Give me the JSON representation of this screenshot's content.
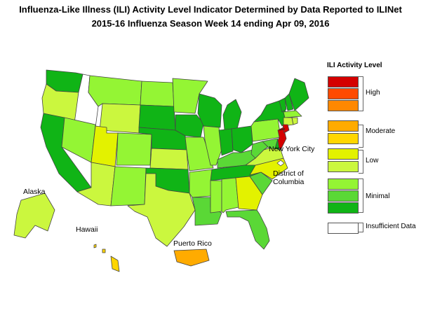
{
  "title": "Influenza-Like Illness (ILI) Activity Level Indicator Determined by Data Reported to ILINet",
  "subtitle": "2015-16  Influenza Season Week  14 ending Apr 09, 2016",
  "labels": {
    "alaska": "Alaska",
    "hawaii": "Hawaii",
    "puerto_rico": "Puerto Rico",
    "nyc": "New York City",
    "dc": "District of Columbia"
  },
  "legend": {
    "title": "ILI Activity Level",
    "levels": [
      {
        "level": 10,
        "color": "#d40000"
      },
      {
        "level": 9,
        "color": "#ff4a00"
      },
      {
        "level": 8,
        "color": "#ff8800"
      },
      {
        "level": 7,
        "color": "#ffab00"
      },
      {
        "level": 6,
        "color": "#ffd600"
      },
      {
        "level": 5,
        "color": "#e3f200"
      },
      {
        "level": 4,
        "color": "#cbf73e"
      },
      {
        "level": 3,
        "color": "#94f534"
      },
      {
        "level": 2,
        "color": "#5ad836"
      },
      {
        "level": 1,
        "color": "#10b416"
      },
      {
        "level": 0,
        "color": "#ffffff"
      }
    ],
    "groups": [
      "High",
      "Moderate",
      "Low",
      "Minimal"
    ],
    "insufficient": "Insufficient Data"
  },
  "states": {
    "WA": 1,
    "OR": 4,
    "ID": 0,
    "MT": 3,
    "WY": 4,
    "CA": 1,
    "NV": 3,
    "UT": 5,
    "CO": 3,
    "AZ": 4,
    "NM": 3,
    "ND": 3,
    "SD": 1,
    "NE": 1,
    "KS": 4,
    "OK": 1,
    "TX": 4,
    "MN": 3,
    "IA": 1,
    "MO": 3,
    "AR": 3,
    "LA": 2,
    "WI": 1,
    "IL": 3,
    "MI": 1,
    "IN": 1,
    "OH": 1,
    "KY": 2,
    "TN": 1,
    "MS": 3,
    "AL": 3,
    "GA": 5,
    "FL": 2,
    "SC": 2,
    "NC": 5,
    "VA": 4,
    "WV": 2,
    "PA": 3,
    "NY": 1,
    "VT": 1,
    "NH": 1,
    "ME": 1,
    "MA": 3,
    "CT": 4,
    "RI": 4,
    "NJ": 10,
    "DE": 1,
    "MD": 2,
    "DC": 0,
    "NYC": 10,
    "AK": 4,
    "HI": 6,
    "PR": 7
  }
}
